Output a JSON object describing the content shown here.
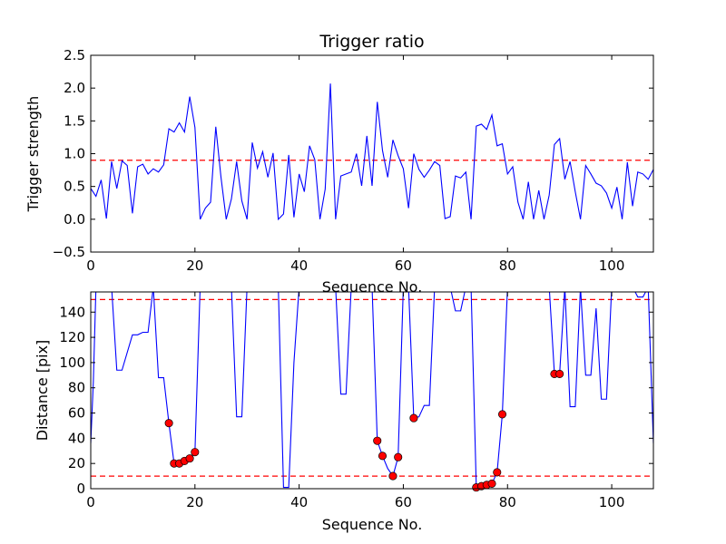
{
  "chart_data": [
    {
      "type": "line",
      "title": "Trigger ratio",
      "xlabel": "Sequence No.",
      "ylabel": "Trigger strength",
      "xlim": [
        0,
        108
      ],
      "ylim": [
        -0.5,
        2.5
      ],
      "xticks": [
        0,
        20,
        40,
        60,
        80,
        100
      ],
      "xtick_labels": [
        "0",
        "20",
        "40",
        "60",
        "80",
        "100"
      ],
      "yticks": [
        -0.5,
        0.0,
        0.5,
        1.0,
        1.5,
        2.0,
        2.5
      ],
      "ytick_labels": [
        "−0.5",
        "0.0",
        "0.5",
        "1.0",
        "1.5",
        "2.0",
        "2.5"
      ],
      "grid": false,
      "series": [
        {
          "color": "#0000ff",
          "x": [
            0,
            1,
            2,
            3,
            4,
            5,
            6,
            7,
            8,
            9,
            10,
            11,
            12,
            13,
            14,
            15,
            16,
            17,
            18,
            19,
            20,
            21,
            22,
            23,
            24,
            25,
            26,
            27,
            28,
            29,
            30,
            31,
            32,
            33,
            34,
            35,
            36,
            37,
            38,
            39,
            40,
            41,
            42,
            43,
            44,
            45,
            46,
            47,
            48,
            49,
            50,
            51,
            52,
            53,
            54,
            55,
            56,
            57,
            58,
            59,
            60,
            61,
            62,
            63,
            64,
            65,
            66,
            67,
            68,
            69,
            70,
            71,
            72,
            73,
            74,
            75,
            76,
            77,
            78,
            79,
            80,
            81,
            82,
            83,
            84,
            85,
            86,
            87,
            88,
            89,
            90,
            91,
            92,
            93,
            94,
            95,
            96,
            97,
            98,
            99,
            100,
            101,
            102,
            103,
            104,
            105,
            106,
            107,
            108
          ],
          "y": [
            0.47,
            0.35,
            0.6,
            0.01,
            0.88,
            0.47,
            0.89,
            0.82,
            0.09,
            0.8,
            0.84,
            0.69,
            0.77,
            0.72,
            0.83,
            1.38,
            1.33,
            1.47,
            1.33,
            1.87,
            1.4,
            0.0,
            0.17,
            0.26,
            1.41,
            0.64,
            0.0,
            0.31,
            0.88,
            0.28,
            0.0,
            1.17,
            0.78,
            1.03,
            0.64,
            1.01,
            0.0,
            0.08,
            0.98,
            0.03,
            0.69,
            0.42,
            1.12,
            0.91,
            0.0,
            0.46,
            2.07,
            0.0,
            0.66,
            0.69,
            0.72,
            1.0,
            0.51,
            1.27,
            0.51,
            1.79,
            1.05,
            0.64,
            1.21,
            0.97,
            0.77,
            0.17,
            1.0,
            0.76,
            0.64,
            0.75,
            0.88,
            0.82,
            0.01,
            0.04,
            0.66,
            0.63,
            0.72,
            0.0,
            1.42,
            1.45,
            1.37,
            1.59,
            1.12,
            1.15,
            0.69,
            0.8,
            0.26,
            0.0,
            0.57,
            0.0,
            0.44,
            0.0,
            0.37,
            1.14,
            1.23,
            0.61,
            0.88,
            0.42,
            0.0,
            0.82,
            0.69,
            0.55,
            0.51,
            0.4,
            0.17,
            0.49,
            0.0,
            0.87,
            0.2,
            0.72,
            0.69,
            0.61,
            0.76
          ]
        }
      ],
      "reference_lines": [
        {
          "axis": "y",
          "value": 0.9,
          "color": "#ff0000",
          "style": "dashed"
        }
      ]
    },
    {
      "type": "line",
      "title": "",
      "xlabel": "Sequence No.",
      "ylabel": "Distance [pix]",
      "xlim": [
        0,
        108
      ],
      "ylim": [
        0,
        156
      ],
      "xticks": [
        0,
        20,
        40,
        60,
        80,
        100
      ],
      "xtick_labels": [
        "0",
        "20",
        "40",
        "60",
        "80",
        "100"
      ],
      "yticks": [
        0,
        20,
        40,
        60,
        80,
        100,
        120,
        140
      ],
      "ytick_labels": [
        "0",
        "20",
        "40",
        "60",
        "80",
        "100",
        "120",
        "140"
      ],
      "grid": false,
      "series": [
        {
          "color": "#0000ff",
          "x": [
            0,
            0.5,
            1,
            2,
            3,
            4,
            5,
            6,
            7,
            8,
            9,
            10,
            11,
            12,
            13,
            14,
            15,
            16,
            17,
            18,
            19,
            20,
            21,
            22,
            23,
            24,
            25,
            26,
            27,
            28,
            29,
            30,
            31,
            32,
            33,
            34,
            35,
            36,
            37,
            38,
            39,
            40,
            41,
            42,
            43,
            44,
            45,
            46,
            47,
            48,
            49,
            50,
            51,
            52,
            53,
            54,
            55,
            56,
            57,
            58,
            59,
            60,
            61,
            62,
            63,
            64,
            65,
            66,
            67,
            68,
            69,
            70,
            71,
            72,
            73,
            74,
            75,
            76,
            77,
            78,
            79,
            80,
            81,
            82,
            83,
            84,
            85,
            86,
            87,
            88,
            89,
            90,
            91,
            92,
            93,
            94,
            95,
            96,
            97,
            98,
            99,
            100,
            101,
            102,
            103,
            104,
            105,
            106,
            107,
            108
          ],
          "y": [
            36,
            85,
            160,
            160,
            160,
            160,
            94,
            94,
            108,
            122,
            122,
            124,
            124,
            160,
            88,
            88,
            52,
            20,
            20,
            22,
            24,
            29,
            160,
            160,
            160,
            160,
            160,
            160,
            160,
            57,
            57,
            160,
            160,
            160,
            160,
            160,
            160,
            160,
            1,
            1,
            100,
            160,
            160,
            160,
            160,
            160,
            160,
            160,
            160,
            75,
            75,
            160,
            160,
            160,
            160,
            160,
            38,
            26,
            16,
            10,
            25,
            160,
            160,
            56,
            57,
            66,
            66,
            160,
            160,
            160,
            160,
            141,
            141,
            160,
            160,
            2,
            2,
            4,
            4,
            13,
            59,
            160,
            160,
            160,
            160,
            160,
            160,
            160,
            160,
            160,
            91,
            91,
            160,
            65,
            65,
            160,
            90,
            90,
            143,
            71,
            71,
            160,
            160,
            160,
            160,
            160,
            152,
            152,
            160,
            36
          ]
        }
      ],
      "markers": {
        "color": "#ff0000",
        "x": [
          15,
          16,
          17,
          18,
          19,
          20,
          55,
          56,
          58,
          59,
          62,
          74,
          75,
          76,
          77,
          78,
          79,
          89,
          90
        ],
        "y": [
          52,
          20,
          20,
          22,
          24,
          29,
          38,
          26,
          10,
          25,
          56,
          1,
          2,
          3,
          4,
          13,
          59,
          91,
          91
        ]
      },
      "reference_lines": [
        {
          "axis": "y",
          "value": 150,
          "color": "#ff0000",
          "style": "dashed"
        },
        {
          "axis": "y",
          "value": 10,
          "color": "#ff0000",
          "style": "dashed"
        }
      ]
    }
  ]
}
